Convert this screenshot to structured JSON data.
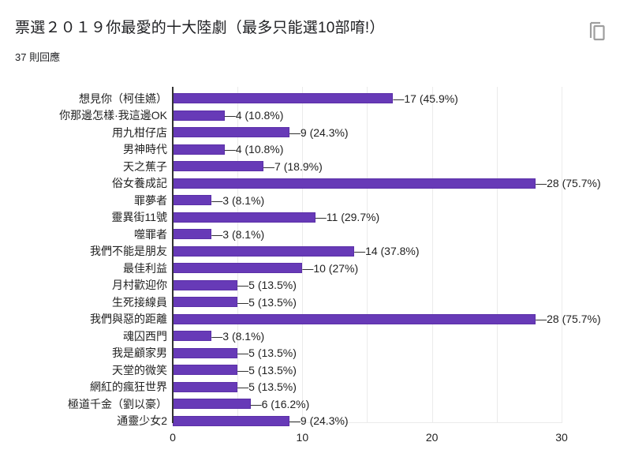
{
  "header": {
    "title": "票選２０１９你最愛的十大陸劇（最多只能選10部唷!）",
    "response_count": "37 則回應",
    "copy_icon": "copy-icon"
  },
  "colors": {
    "bar": "#673ab7",
    "gridline": "#ebebeb",
    "axis": "#333333"
  },
  "chart_data": {
    "type": "bar",
    "orientation": "horizontal",
    "title": "票選２０１９你最愛的十大陸劇（最多只能選10部唷!）",
    "subtitle": "37 則回應",
    "xlabel": "",
    "ylabel": "",
    "xlim": [
      0,
      30
    ],
    "xticks": [
      0,
      10,
      20,
      30
    ],
    "grid": true,
    "grid_step": 5,
    "legend": null,
    "categories": [
      "想見你（柯佳嬿）",
      "你那邊怎樣·我這邊OK",
      "用九柑仔店",
      "男神時代",
      "天之蕉子",
      "俗女養成記",
      "罪夢者",
      "靈異街11號",
      "噬罪者",
      "我們不能是朋友",
      "最佳利益",
      "月村歡迎你",
      "生死接線員",
      "我們與惡的距離",
      "魂囚西門",
      "我是顧家男",
      "天堂的微笑",
      "網紅的瘋狂世界",
      "極道千金（劉以豪）",
      "通靈少女2"
    ],
    "values": [
      17,
      4,
      9,
      4,
      7,
      28,
      3,
      11,
      3,
      14,
      10,
      5,
      5,
      28,
      3,
      5,
      5,
      5,
      6,
      9
    ],
    "percentages": [
      "45.9%",
      "10.8%",
      "24.3%",
      "10.8%",
      "18.9%",
      "75.7%",
      "8.1%",
      "29.7%",
      "8.1%",
      "37.8%",
      "27%",
      "13.5%",
      "13.5%",
      "75.7%",
      "8.1%",
      "13.5%",
      "13.5%",
      "13.5%",
      "16.2%",
      "24.3%"
    ],
    "data_labels": [
      "17 (45.9%)",
      "4 (10.8%)",
      "9 (24.3%)",
      "4 (10.8%)",
      "7 (18.9%)",
      "28 (75.7%)",
      "3 (8.1%)",
      "11 (29.7%)",
      "3 (8.1%)",
      "14 (37.8%)",
      "10 (27%)",
      "5 (13.5%)",
      "5 (13.5%)",
      "28 (75.7%)",
      "3 (8.1%)",
      "5 (13.5%)",
      "5 (13.5%)",
      "5 (13.5%)",
      "6 (16.2%)",
      "9 (24.3%)"
    ]
  }
}
